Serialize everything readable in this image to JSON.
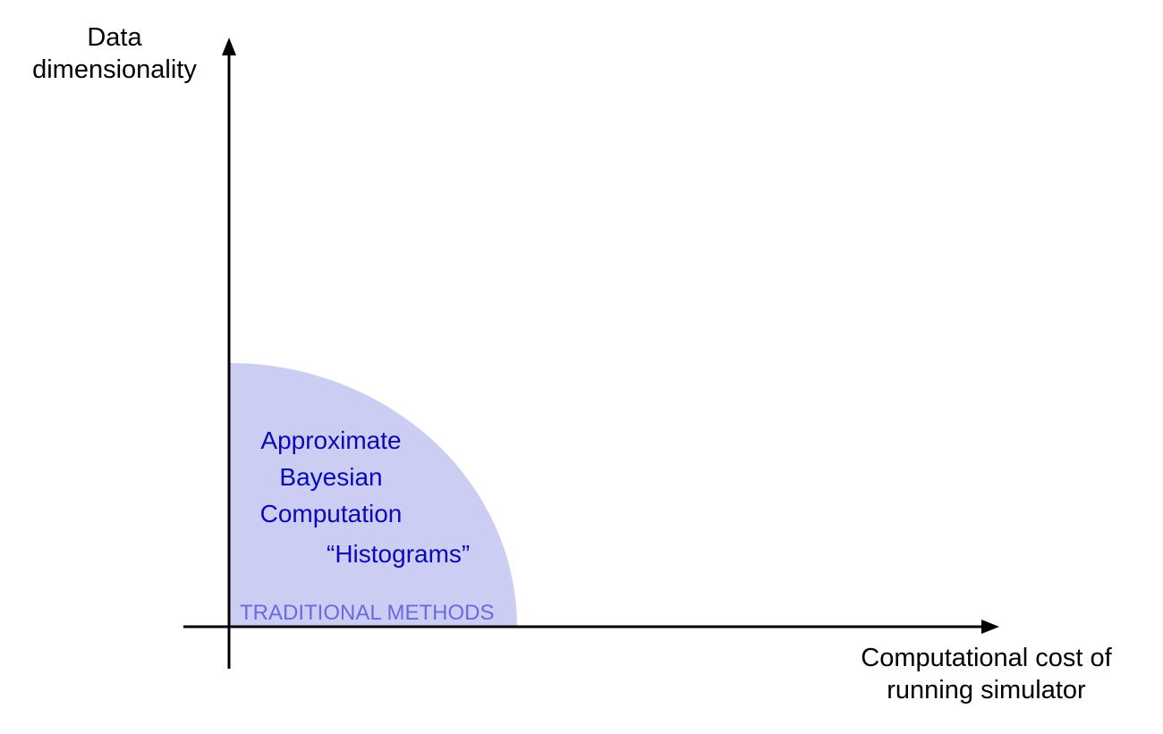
{
  "axes": {
    "y_label_lines": [
      "Data",
      "dimensionality"
    ],
    "x_label_lines": [
      "Computational cost of",
      "running simulator"
    ]
  },
  "region": {
    "label": "TRADITIONAL METHODS",
    "methods": [
      {
        "lines": [
          "Approximate",
          "Bayesian",
          "Computation"
        ]
      },
      {
        "lines": [
          "“Histograms”"
        ]
      }
    ]
  },
  "colors": {
    "region_fill": "#cccdf3",
    "method_text": "#0b09b5",
    "region_label_text": "#6a6ae0",
    "axis": "#000000"
  }
}
